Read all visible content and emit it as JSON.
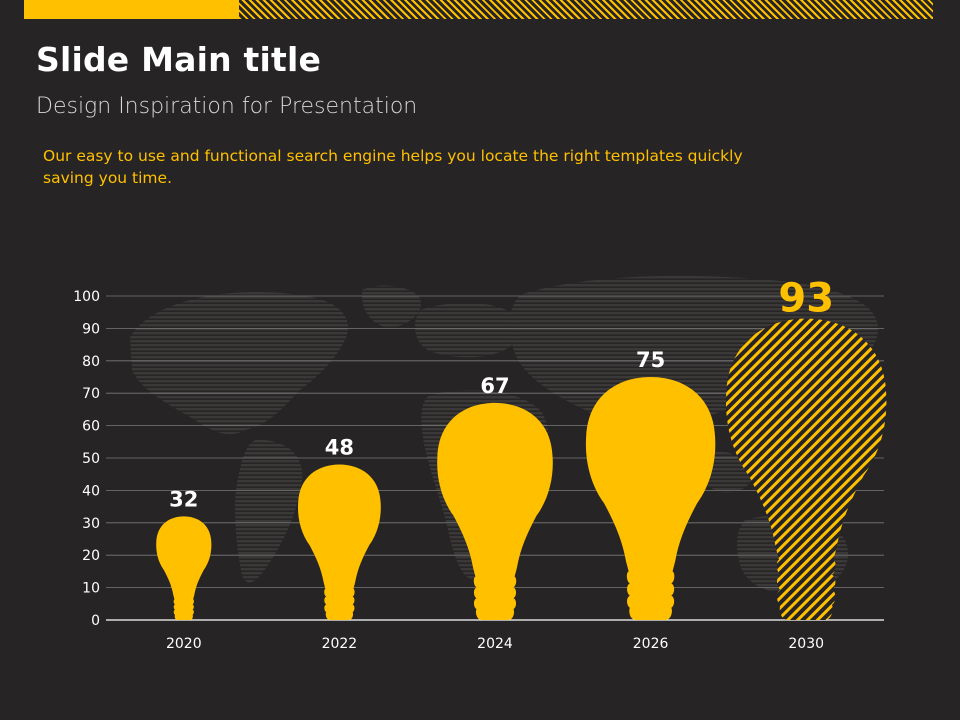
{
  "slide": {
    "title": "Slide Main title",
    "subtitle": "Design Inspiration for Presentation",
    "description": "Our easy to use and functional search engine helps you locate the right templates quickly saving you time."
  },
  "colors": {
    "accent": "#FFC000",
    "background": "#262424",
    "grid": "#7a7a7a",
    "text": "#ffffff"
  },
  "chart_data": {
    "type": "bar",
    "mark_shape": "light-bulb",
    "categories": [
      "2020",
      "2022",
      "2024",
      "2026",
      "2030"
    ],
    "values": [
      32,
      48,
      67,
      75,
      93
    ],
    "data_labels": [
      "32",
      "48",
      "67",
      "75",
      "93"
    ],
    "highlight_index": 4,
    "highlight_style": "hatched",
    "ylim": [
      0,
      100
    ],
    "yticks": [
      0,
      10,
      20,
      30,
      40,
      50,
      60,
      70,
      80,
      90,
      100
    ],
    "grid": true,
    "legend": "none",
    "background_image": "world-map"
  }
}
